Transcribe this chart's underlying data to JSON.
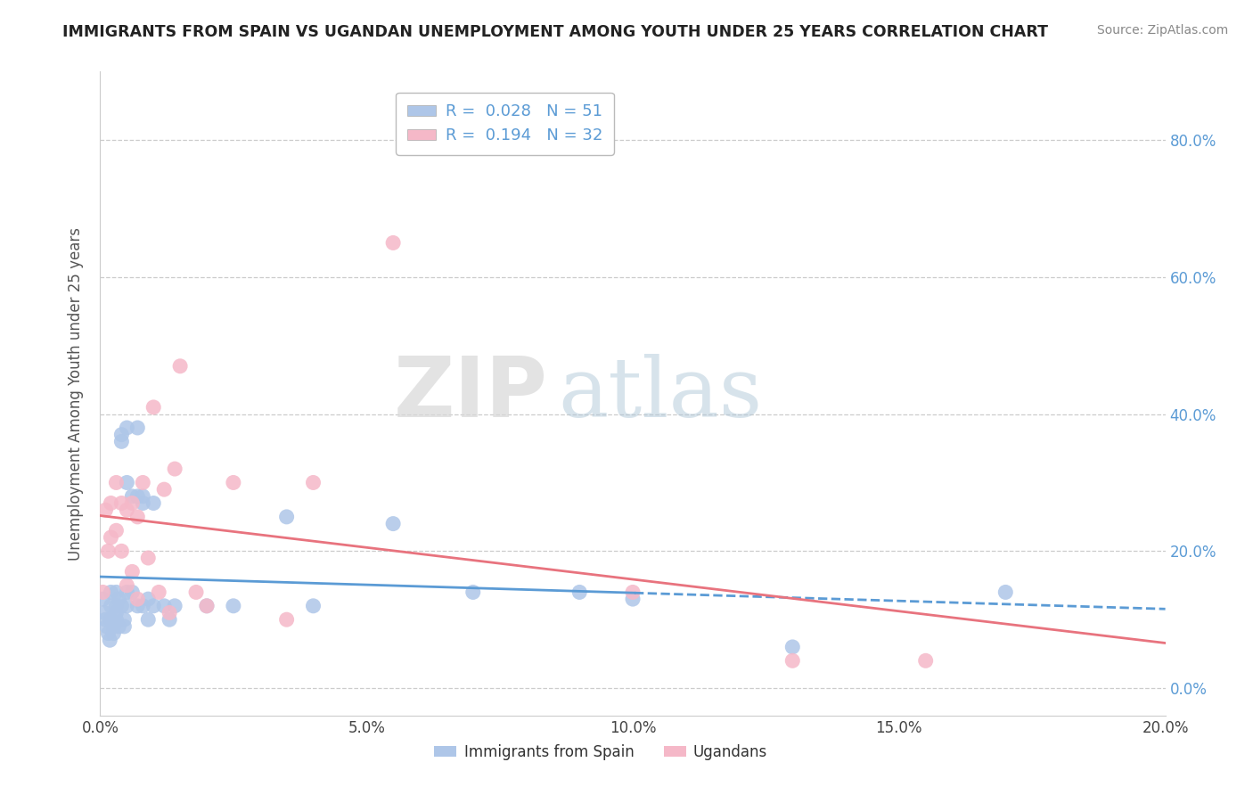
{
  "title": "IMMIGRANTS FROM SPAIN VS UGANDAN UNEMPLOYMENT AMONG YOUTH UNDER 25 YEARS CORRELATION CHART",
  "source": "Source: ZipAtlas.com",
  "ylabel": "Unemployment Among Youth under 25 years",
  "xlabel": "",
  "xlim": [
    0.0,
    0.2
  ],
  "ylim": [
    -0.04,
    0.9
  ],
  "yticks": [
    0.0,
    0.2,
    0.4,
    0.6,
    0.8
  ],
  "ytick_labels": [
    "0.0%",
    "20.0%",
    "40.0%",
    "60.0%",
    "80.0%"
  ],
  "xticks": [
    0.0,
    0.05,
    0.1,
    0.15,
    0.2
  ],
  "xtick_labels": [
    "0.0%",
    "5.0%",
    "10.0%",
    "15.0%",
    "20.0%"
  ],
  "blue_color": "#aec6e8",
  "pink_color": "#f5b8c8",
  "blue_line_color": "#5b9bd5",
  "pink_line_color": "#e8737e",
  "legend_blue_label_r": "R =  0.028",
  "legend_blue_label_n": "N = 51",
  "legend_pink_label_r": "R =  0.194",
  "legend_pink_label_n": "N = 32",
  "legend_bottom_blue": "Immigrants from Spain",
  "legend_bottom_pink": "Ugandans",
  "blue_scatter_x": [
    0.0005,
    0.0008,
    0.001,
    0.0012,
    0.0015,
    0.0018,
    0.002,
    0.002,
    0.002,
    0.0025,
    0.0025,
    0.003,
    0.003,
    0.003,
    0.003,
    0.0035,
    0.0035,
    0.004,
    0.004,
    0.004,
    0.0045,
    0.0045,
    0.005,
    0.005,
    0.005,
    0.005,
    0.006,
    0.006,
    0.007,
    0.007,
    0.007,
    0.008,
    0.008,
    0.008,
    0.009,
    0.009,
    0.01,
    0.01,
    0.012,
    0.013,
    0.014,
    0.02,
    0.025,
    0.035,
    0.04,
    0.055,
    0.07,
    0.09,
    0.1,
    0.13,
    0.17
  ],
  "blue_scatter_y": [
    0.13,
    0.11,
    0.1,
    0.09,
    0.08,
    0.07,
    0.14,
    0.12,
    0.1,
    0.09,
    0.08,
    0.14,
    0.12,
    0.11,
    0.1,
    0.13,
    0.09,
    0.37,
    0.36,
    0.12,
    0.1,
    0.09,
    0.38,
    0.3,
    0.14,
    0.12,
    0.28,
    0.14,
    0.38,
    0.28,
    0.12,
    0.27,
    0.28,
    0.12,
    0.13,
    0.1,
    0.27,
    0.12,
    0.12,
    0.1,
    0.12,
    0.12,
    0.12,
    0.25,
    0.12,
    0.24,
    0.14,
    0.14,
    0.13,
    0.06,
    0.14
  ],
  "pink_scatter_x": [
    0.0005,
    0.001,
    0.0015,
    0.002,
    0.002,
    0.003,
    0.003,
    0.004,
    0.004,
    0.005,
    0.005,
    0.006,
    0.006,
    0.007,
    0.007,
    0.008,
    0.009,
    0.01,
    0.011,
    0.012,
    0.013,
    0.014,
    0.015,
    0.018,
    0.02,
    0.025,
    0.035,
    0.04,
    0.055,
    0.1,
    0.13,
    0.155
  ],
  "pink_scatter_y": [
    0.14,
    0.26,
    0.2,
    0.27,
    0.22,
    0.3,
    0.23,
    0.27,
    0.2,
    0.26,
    0.15,
    0.27,
    0.17,
    0.25,
    0.13,
    0.3,
    0.19,
    0.41,
    0.14,
    0.29,
    0.11,
    0.32,
    0.47,
    0.14,
    0.12,
    0.3,
    0.1,
    0.3,
    0.65,
    0.14,
    0.04,
    0.04
  ],
  "watermark_zip": "ZIP",
  "watermark_atlas": "atlas",
  "grid_color": "#cccccc",
  "background_color": "#ffffff",
  "tick_label_color": "#5b9bd5",
  "ylabel_color": "#555555"
}
